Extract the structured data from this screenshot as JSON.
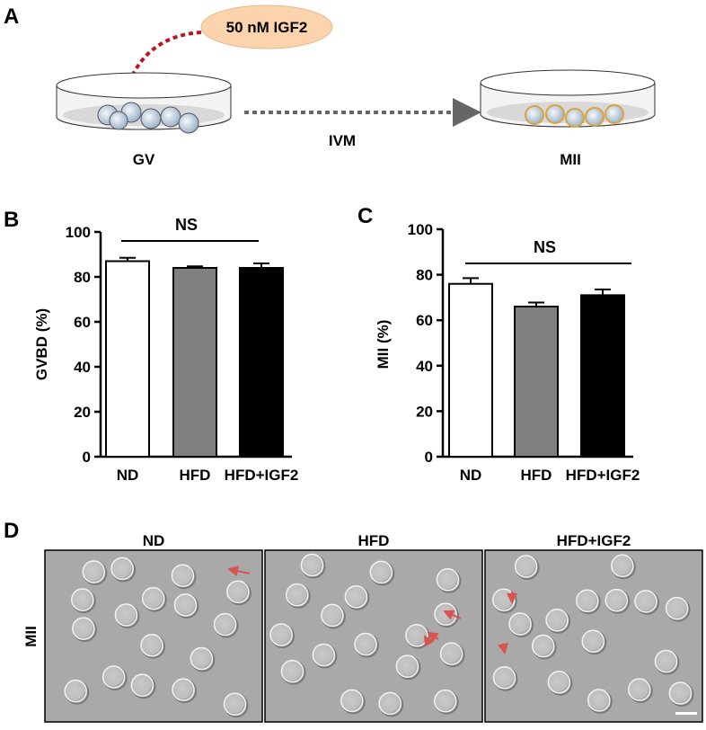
{
  "panel_labels": [
    "A",
    "B",
    "C",
    "D"
  ],
  "diagram": {
    "treatment": "50 nM IGF2",
    "start": "GV",
    "process": "IVM",
    "end": "MII"
  },
  "chart_data": [
    {
      "type": "bar",
      "categories": [
        "ND",
        "HFD",
        "HFD+IGF2"
      ],
      "values": [
        87,
        84,
        84
      ],
      "errors": [
        1.5,
        0.7,
        2
      ],
      "colors": [
        "#ffffff",
        "#808080",
        "#000000"
      ],
      "y_label": "GVBD (%)",
      "annotation": "NS",
      "ylim": [
        0,
        100
      ],
      "yticks": [
        0,
        20,
        40,
        60,
        80,
        100
      ]
    },
    {
      "type": "bar",
      "categories": [
        "ND",
        "HFD",
        "HFD+IGF2"
      ],
      "values": [
        76,
        66,
        71
      ],
      "errors": [
        2.5,
        1.8,
        2.5
      ],
      "colors": [
        "#ffffff",
        "#808080",
        "#000000"
      ],
      "y_label": "MII (%)",
      "annotation": "NS",
      "ylim": [
        0,
        100
      ],
      "yticks": [
        0,
        20,
        40,
        60,
        80,
        100
      ]
    }
  ],
  "micrographs": {
    "row_label": "MII",
    "columns": [
      "ND",
      "HFD",
      "HFD+IGF2"
    ]
  }
}
